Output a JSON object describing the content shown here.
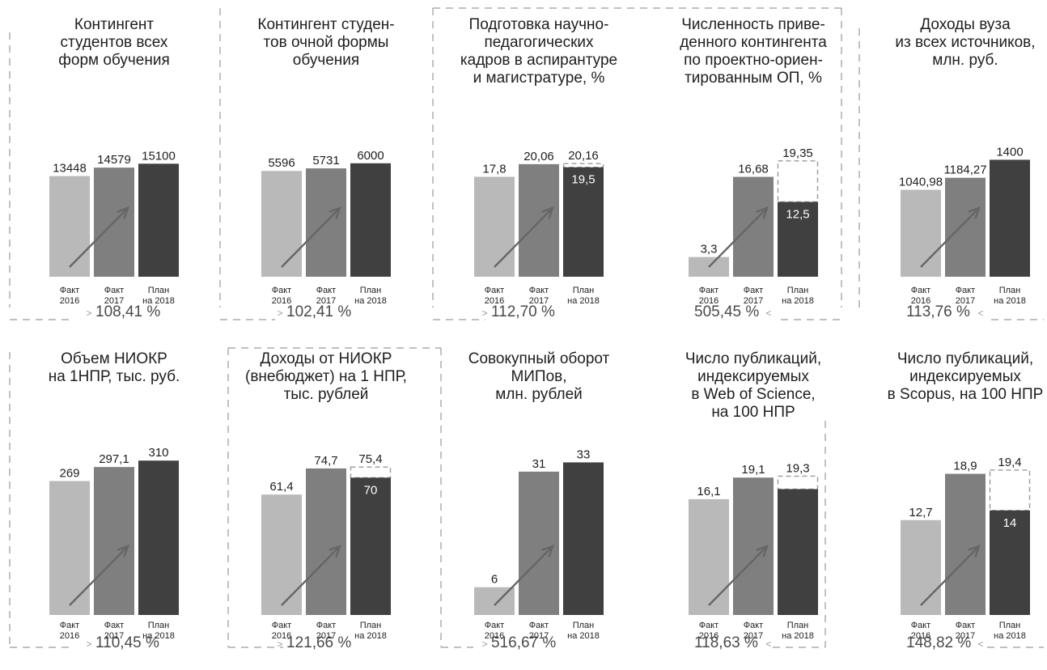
{
  "colors": {
    "bar_2016": "#b9b9b9",
    "bar_2017": "#7f7f7f",
    "bar_2018": "#404040",
    "arrow": "#666666",
    "dashed": "#9a9a9a"
  },
  "chart_data": [
    {
      "type": "bar",
      "title": "Контингент\nстудентов всех\nформ обучения",
      "categories": [
        "Факт\n2016",
        "Факт\n2017",
        "План\nна 2018"
      ],
      "values": [
        13448,
        14579,
        15100
      ],
      "value_labels": [
        "13448",
        "14579",
        "15100"
      ],
      "growth": "108,41 %",
      "growth_arrow": "left",
      "ylim": [
        0,
        24000
      ]
    },
    {
      "type": "bar",
      "title": "Контингент студен-\nтов очной формы\nобучения",
      "categories": [
        "Факт\n2016",
        "Факт\n2017",
        "План\nна 2018"
      ],
      "values": [
        5596,
        5731,
        6000
      ],
      "value_labels": [
        "5596",
        "5731",
        "6000"
      ],
      "growth": "102,41 %",
      "growth_arrow": "left",
      "ylim": [
        0,
        9500
      ]
    },
    {
      "type": "bar",
      "title": "Подготовка научно-\nпедагогических\nкадров в аспирантуре\nи магистратуре, %",
      "categories": [
        "Факт\n2016",
        "Факт\n2017",
        "План\nна 2018"
      ],
      "values": [
        17.8,
        20.06,
        19.5
      ],
      "value_labels": [
        "17,8",
        "20,06",
        "19,5"
      ],
      "target": 20.16,
      "target_label": "20,16",
      "growth": "112,70 %",
      "growth_arrow": "left",
      "ylim": [
        0,
        32
      ]
    },
    {
      "type": "bar",
      "title": "Численность приве-\nденного контингента\nпо проектно-ориен-\nтированным ОП, %",
      "categories": [
        "Факт\n2016",
        "Факт\n2017",
        "План\nна 2018"
      ],
      "values": [
        3.3,
        16.68,
        12.5
      ],
      "value_labels": [
        "3,3",
        "16,68",
        "12,5"
      ],
      "target": 19.35,
      "target_label": "19,35",
      "growth": "505,45 %",
      "growth_arrow": "right",
      "ylim": [
        0,
        30
      ]
    },
    {
      "type": "bar",
      "title": "Доходы вуза\nиз всех источников,\nмлн. руб.",
      "categories": [
        "Факт\n2016",
        "Факт\n2017",
        "План\nна 2018"
      ],
      "values": [
        1040.98,
        1184.27,
        1400
      ],
      "value_labels": [
        "1040,98",
        "1184,27",
        "1400"
      ],
      "growth": "113,76 %",
      "growth_arrow": "right",
      "ylim": [
        0,
        2150
      ]
    },
    {
      "type": "bar",
      "title": "Объем НИОКР\nна 1НПР, тыс. руб.",
      "categories": [
        "Факт\n2016",
        "Факт\n2017",
        "План\nна 2018"
      ],
      "values": [
        269,
        297.1,
        310
      ],
      "value_labels": [
        "269",
        "297,1",
        "310"
      ],
      "growth": "110,45 %",
      "growth_arrow": "left",
      "ylim": [
        0,
        390
      ]
    },
    {
      "type": "bar",
      "title": "Доходы от НИОКР\n(внебюджет) на 1 НПР,\nтыс. рублей",
      "categories": [
        "Факт\n2016",
        "Факт\n2017",
        "План\nна 2018"
      ],
      "values": [
        61.4,
        74.7,
        70
      ],
      "value_labels": [
        "61,4",
        "74,7",
        "70"
      ],
      "target": 75.4,
      "target_label": "75,4",
      "growth": "121,66 %",
      "growth_arrow": "left",
      "ylim": [
        0,
        99
      ]
    },
    {
      "type": "bar",
      "title": "Совокупный оборот\nМИПов,\nмлн. рублей",
      "categories": [
        "Факт\n2016",
        "Факт\n2017",
        "План\nна 2018"
      ],
      "values": [
        6,
        31,
        33
      ],
      "value_labels": [
        "6",
        "31",
        "33"
      ],
      "growth": "516,67 %",
      "growth_arrow": "left",
      "ylim": [
        0,
        42
      ]
    },
    {
      "type": "bar",
      "title": "Число публикаций,\nиндексируемых\nв Web of Science,\nна 100 НПР",
      "categories": [
        "Факт\n2016",
        "Факт\n2017",
        "План\nна 2018"
      ],
      "values": [
        16.1,
        19.1,
        17.5
      ],
      "value_labels": [
        "16,1",
        "19,1",
        ""
      ],
      "target": 19.3,
      "target_label": "19,3",
      "growth": "118,63 %",
      "growth_arrow": "right",
      "ylim": [
        0,
        27
      ]
    },
    {
      "type": "bar",
      "title": "Число публикаций,\nиндексируемых\nв Scopus, на 100 НПР",
      "categories": [
        "Факт\n2016",
        "Факт\n2017",
        "План\nна 2018"
      ],
      "values": [
        12.7,
        18.9,
        14
      ],
      "value_labels": [
        "12,7",
        "18,9",
        "14"
      ],
      "target": 19.4,
      "target_label": "19,4",
      "growth": "148,82 %",
      "growth_arrow": "right",
      "ylim": [
        0,
        26
      ]
    }
  ]
}
